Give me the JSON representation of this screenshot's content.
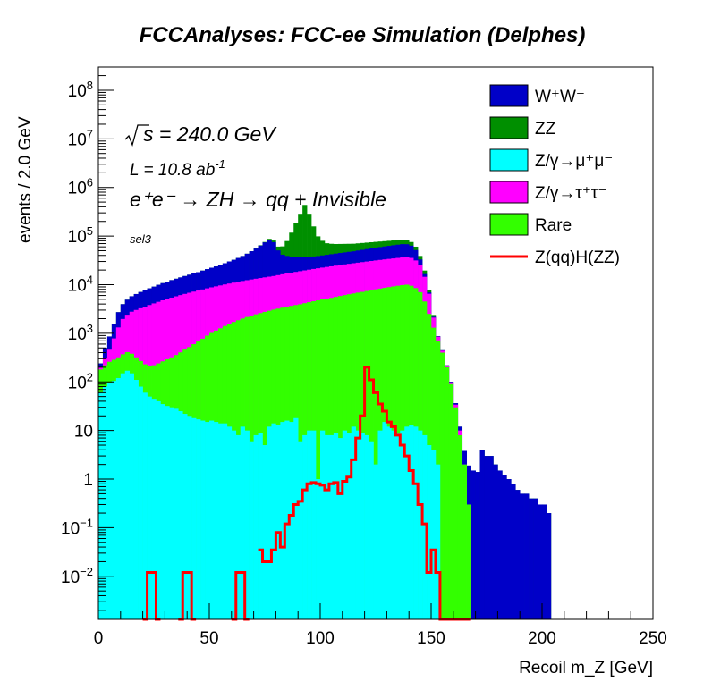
{
  "chart_data": {
    "type": "histogram-stacked",
    "title": "FCCAnalyses: FCC-ee Simulation (Delphes)",
    "xlabel": "Recoil m_Z [GeV]",
    "ylabel": "events / 2.0 GeV",
    "xlim": [
      0,
      250
    ],
    "ylim": [
      0.0013,
      300000000
    ],
    "yscale": "log",
    "bin_width": 2.0,
    "x_ticks": [
      "0",
      "50",
      "100",
      "150",
      "200",
      "250"
    ],
    "y_ticks": [
      {
        "value": 0.01,
        "label": "10",
        "exp": "−2"
      },
      {
        "value": 0.1,
        "label": "10",
        "exp": "−1"
      },
      {
        "value": 1,
        "label": "1",
        "exp": ""
      },
      {
        "value": 10,
        "label": "10",
        "exp": ""
      },
      {
        "value": 100,
        "label": "10",
        "exp": "2"
      },
      {
        "value": 1000,
        "label": "10",
        "exp": "3"
      },
      {
        "value": 10000,
        "label": "10",
        "exp": "4"
      },
      {
        "value": 100000,
        "label": "10",
        "exp": "5"
      },
      {
        "value": 1000000,
        "label": "10",
        "exp": "6"
      },
      {
        "value": 10000000,
        "label": "10",
        "exp": "7"
      },
      {
        "value": 100000000,
        "label": "10",
        "exp": "8"
      }
    ],
    "annotations": {
      "sqrt_s": "s = 240.0 GeV",
      "lumi": "L = 10.8 ab",
      "lumi_exp": "-1",
      "process": "e⁺e⁻ → ZH → qq + Invisible",
      "selection": "sel3"
    },
    "legend_position": "top-right",
    "legend": [
      {
        "label": "W⁺W⁻",
        "type": "fill",
        "color": "#0000c8"
      },
      {
        "label": "ZZ",
        "type": "fill",
        "color": "#008f00"
      },
      {
        "label": "Z/γ→μ⁺μ⁻",
        "type": "fill",
        "color": "#00ffff"
      },
      {
        "label": "Z/γ→τ⁺τ⁻",
        "type": "fill",
        "color": "#ff00ff"
      },
      {
        "label": "Rare",
        "type": "fill",
        "color": "#33ff00"
      },
      {
        "label": "Z(qq)H(ZZ)",
        "type": "line",
        "color": "#ff0000"
      }
    ],
    "stack_order_bottom_to_top": [
      "Z/γ→μ⁺μ⁻",
      "Rare",
      "Z/γ→τ⁺τ⁻",
      "W⁺W⁻",
      "ZZ"
    ],
    "series": [
      {
        "name": "Z/γ→μ⁺μ⁻",
        "color": "#00ffff",
        "x": [
          0,
          2,
          4,
          6,
          8,
          10,
          12,
          14,
          16,
          18,
          20,
          22,
          24,
          26,
          28,
          30,
          32,
          34,
          36,
          38,
          40,
          42,
          44,
          46,
          48,
          50,
          52,
          54,
          56,
          58,
          60,
          62,
          64,
          66,
          68,
          70,
          72,
          74,
          76,
          78,
          80,
          82,
          84,
          86,
          88,
          90,
          92,
          94,
          96,
          98,
          100,
          102,
          104,
          106,
          108,
          110,
          112,
          114,
          116,
          118,
          120,
          122,
          124,
          126,
          128,
          130,
          132,
          134,
          136,
          138,
          140,
          142,
          144,
          146,
          148,
          150,
          152,
          154
        ],
        "values": [
          60,
          80,
          95,
          105,
          120,
          150,
          170,
          150,
          110,
          80,
          60,
          50,
          45,
          40,
          35,
          32,
          30,
          28,
          25,
          22,
          20,
          18,
          17,
          16,
          15,
          16,
          15,
          14,
          14,
          12,
          10,
          8,
          12,
          10,
          6,
          8,
          9,
          5,
          12,
          14,
          13,
          15,
          16,
          15,
          18,
          6,
          8,
          10,
          10,
          1.0,
          10,
          8,
          8,
          9,
          7,
          10,
          9,
          12,
          10,
          9,
          8,
          6,
          2,
          10,
          15,
          12,
          10,
          9,
          10,
          12,
          13,
          12,
          10,
          8,
          5,
          4,
          2,
          0
        ]
      },
      {
        "name": "Rare",
        "color": "#33ff00",
        "x": [
          0,
          2,
          4,
          6,
          8,
          10,
          12,
          14,
          16,
          18,
          20,
          22,
          24,
          26,
          28,
          30,
          32,
          34,
          36,
          38,
          40,
          42,
          44,
          46,
          48,
          50,
          52,
          54,
          56,
          58,
          60,
          62,
          64,
          66,
          68,
          70,
          72,
          74,
          76,
          78,
          80,
          82,
          84,
          86,
          88,
          90,
          92,
          94,
          96,
          98,
          100,
          102,
          104,
          106,
          108,
          110,
          112,
          114,
          116,
          118,
          120,
          122,
          124,
          126,
          128,
          130,
          132,
          134,
          136,
          138,
          140,
          142,
          144,
          146,
          148,
          150,
          152,
          154,
          156,
          158,
          160,
          162,
          164,
          166,
          168
        ],
        "values": [
          120,
          140,
          165,
          180,
          200,
          220,
          240,
          230,
          210,
          190,
          170,
          165,
          175,
          200,
          230,
          260,
          290,
          330,
          380,
          440,
          500,
          580,
          660,
          760,
          880,
          1000,
          1120,
          1250,
          1400,
          1550,
          1700,
          1850,
          2000,
          2150,
          2300,
          2450,
          2600,
          2750,
          2900,
          3050,
          3200,
          3350,
          3500,
          3650,
          3800,
          3950,
          4150,
          4350,
          4550,
          4750,
          4950,
          5150,
          5350,
          5600,
          5850,
          6100,
          6350,
          6600,
          6850,
          7100,
          7400,
          7700,
          8000,
          8300,
          8600,
          8900,
          9200,
          9500,
          9800,
          10000,
          9500,
          8500,
          7000,
          4500,
          2500,
          1300,
          700,
          400,
          200,
          90,
          30,
          8,
          2,
          0.3,
          0
        ]
      },
      {
        "name": "Z/γ→τ⁺τ⁻",
        "color": "#ff00ff",
        "x": [
          0,
          2,
          4,
          6,
          8,
          10,
          12,
          14,
          16,
          18,
          20,
          22,
          24,
          26,
          28,
          30,
          32,
          34,
          36,
          38,
          40,
          42,
          44,
          46,
          48,
          50,
          52,
          54,
          56,
          58,
          60,
          62,
          64,
          66,
          68,
          70,
          72,
          74,
          76,
          78,
          80,
          82,
          84,
          86,
          88,
          90,
          92,
          94,
          96,
          98,
          100,
          102,
          104,
          106,
          108,
          110,
          112,
          114,
          116,
          118,
          120,
          122,
          124,
          126,
          128,
          130,
          132,
          134,
          136,
          138,
          140,
          142,
          144,
          146,
          148,
          150,
          152,
          154,
          156,
          158,
          160,
          162,
          164
        ],
        "values": [
          20,
          80,
          200,
          500,
          1000,
          1600,
          2000,
          2400,
          2700,
          3000,
          3300,
          3600,
          3900,
          4200,
          4500,
          4800,
          5100,
          5400,
          5700,
          6000,
          6300,
          6600,
          6900,
          7200,
          7500,
          7800,
          8100,
          8400,
          8700,
          9000,
          9300,
          9600,
          9900,
          10200,
          10500,
          10800,
          11100,
          11400,
          11700,
          12000,
          12500,
          13000,
          13500,
          14000,
          14500,
          15000,
          15500,
          16000,
          16500,
          17000,
          17500,
          18000,
          18500,
          19000,
          19500,
          20000,
          20500,
          21000,
          21500,
          22000,
          22500,
          23000,
          23500,
          24000,
          24500,
          25000,
          25500,
          26000,
          26500,
          27000,
          26000,
          23000,
          18000,
          10000,
          4000,
          800,
          150,
          40,
          15,
          8,
          4,
          2,
          0
        ]
      },
      {
        "name": "W⁺W⁻",
        "color": "#0000c8",
        "x": [
          0,
          2,
          4,
          6,
          8,
          10,
          12,
          14,
          16,
          18,
          20,
          22,
          24,
          26,
          28,
          30,
          32,
          34,
          36,
          38,
          40,
          42,
          44,
          46,
          48,
          50,
          52,
          54,
          56,
          58,
          60,
          62,
          64,
          66,
          68,
          70,
          72,
          74,
          76,
          78,
          80,
          82,
          84,
          86,
          88,
          90,
          92,
          94,
          96,
          98,
          100,
          102,
          104,
          106,
          108,
          110,
          112,
          114,
          116,
          118,
          120,
          122,
          124,
          126,
          128,
          130,
          132,
          134,
          136,
          138,
          140,
          142,
          144,
          146,
          148,
          150,
          152,
          154,
          156,
          158,
          160,
          162,
          164,
          166,
          168,
          170,
          172,
          174,
          176,
          178,
          180,
          182,
          184,
          186,
          188,
          190,
          192,
          194,
          196,
          198,
          200,
          202
        ],
        "values": [
          40,
          200,
          400,
          800,
          1400,
          2000,
          2500,
          3000,
          3400,
          3800,
          4200,
          4600,
          5000,
          5500,
          6000,
          6500,
          7000,
          7500,
          8000,
          8600,
          9200,
          9800,
          10500,
          11500,
          12500,
          13500,
          14500,
          16000,
          17500,
          19500,
          21500,
          24000,
          27000,
          31000,
          36000,
          42000,
          50000,
          60000,
          70000,
          60000,
          35000,
          25000,
          22000,
          20000,
          19000,
          18000,
          17500,
          17000,
          17000,
          17000,
          17500,
          18000,
          18500,
          19000,
          19500,
          20000,
          20500,
          21000,
          22000,
          23000,
          24000,
          25000,
          26000,
          27000,
          28000,
          29000,
          30000,
          31000,
          32000,
          31000,
          28000,
          20000,
          8000,
          2000,
          400,
          80,
          20,
          8,
          4,
          3,
          2.5,
          2,
          1.8,
          1.6,
          1.5,
          1.4,
          4,
          3,
          3,
          2,
          1.5,
          1.2,
          1.0,
          0.8,
          0.6,
          0.5,
          0.5,
          0.4,
          0.4,
          0.3,
          0.3,
          0.2
        ]
      },
      {
        "name": "ZZ",
        "color": "#008f00",
        "x": [
          70,
          72,
          74,
          76,
          78,
          80,
          82,
          84,
          86,
          88,
          90,
          92,
          94,
          96,
          98,
          100,
          102,
          104,
          106,
          108,
          110,
          112,
          114,
          116,
          118,
          120,
          122,
          124,
          126,
          128,
          130,
          132,
          134,
          136,
          138,
          140,
          142,
          144,
          146,
          148,
          150
        ],
        "values": [
          500,
          1000,
          1500,
          3000,
          6000,
          10000,
          20000,
          40000,
          80000,
          150000,
          250000,
          400000,
          250000,
          120000,
          60000,
          40000,
          30000,
          27000,
          25000,
          24000,
          23000,
          22000,
          21000,
          20500,
          20000,
          19500,
          19000,
          18500,
          18000,
          17500,
          17000,
          16500,
          16000,
          15000,
          14000,
          12000,
          9000,
          6000,
          3000,
          1000,
          200
        ]
      },
      {
        "name": "Z(qq)H(ZZ)",
        "color": "#ff0000",
        "style": "line",
        "x": [
          20,
          22,
          24,
          26,
          36,
          38,
          40,
          42,
          60,
          62,
          64,
          66,
          72,
          74,
          76,
          78,
          80,
          82,
          84,
          86,
          88,
          90,
          92,
          94,
          96,
          98,
          100,
          102,
          104,
          106,
          108,
          110,
          112,
          114,
          116,
          118,
          120,
          122,
          124,
          126,
          128,
          130,
          132,
          134,
          136,
          138,
          140,
          142,
          144,
          146,
          148,
          150,
          152,
          154,
          156,
          158,
          160,
          162,
          164,
          166
        ],
        "values": [
          0.0013,
          0.012,
          0.012,
          0.0013,
          0.0013,
          0.012,
          0.012,
          0.0013,
          0.0013,
          0.012,
          0.012,
          0.0013,
          0.035,
          0.02,
          0.02,
          0.035,
          0.08,
          0.04,
          0.12,
          0.18,
          0.3,
          0.35,
          0.6,
          0.8,
          0.85,
          0.8,
          0.75,
          0.6,
          0.8,
          0.85,
          0.5,
          0.9,
          1.1,
          2.5,
          7,
          20,
          200,
          110,
          60,
          35,
          25,
          15,
          12,
          8,
          5,
          3,
          1.5,
          0.8,
          0.3,
          0.12,
          0.012,
          0.035,
          0.012,
          0.0013,
          0.0013,
          0.0013,
          0.0013,
          0.0013,
          0.0013,
          0.0013
        ]
      }
    ]
  }
}
